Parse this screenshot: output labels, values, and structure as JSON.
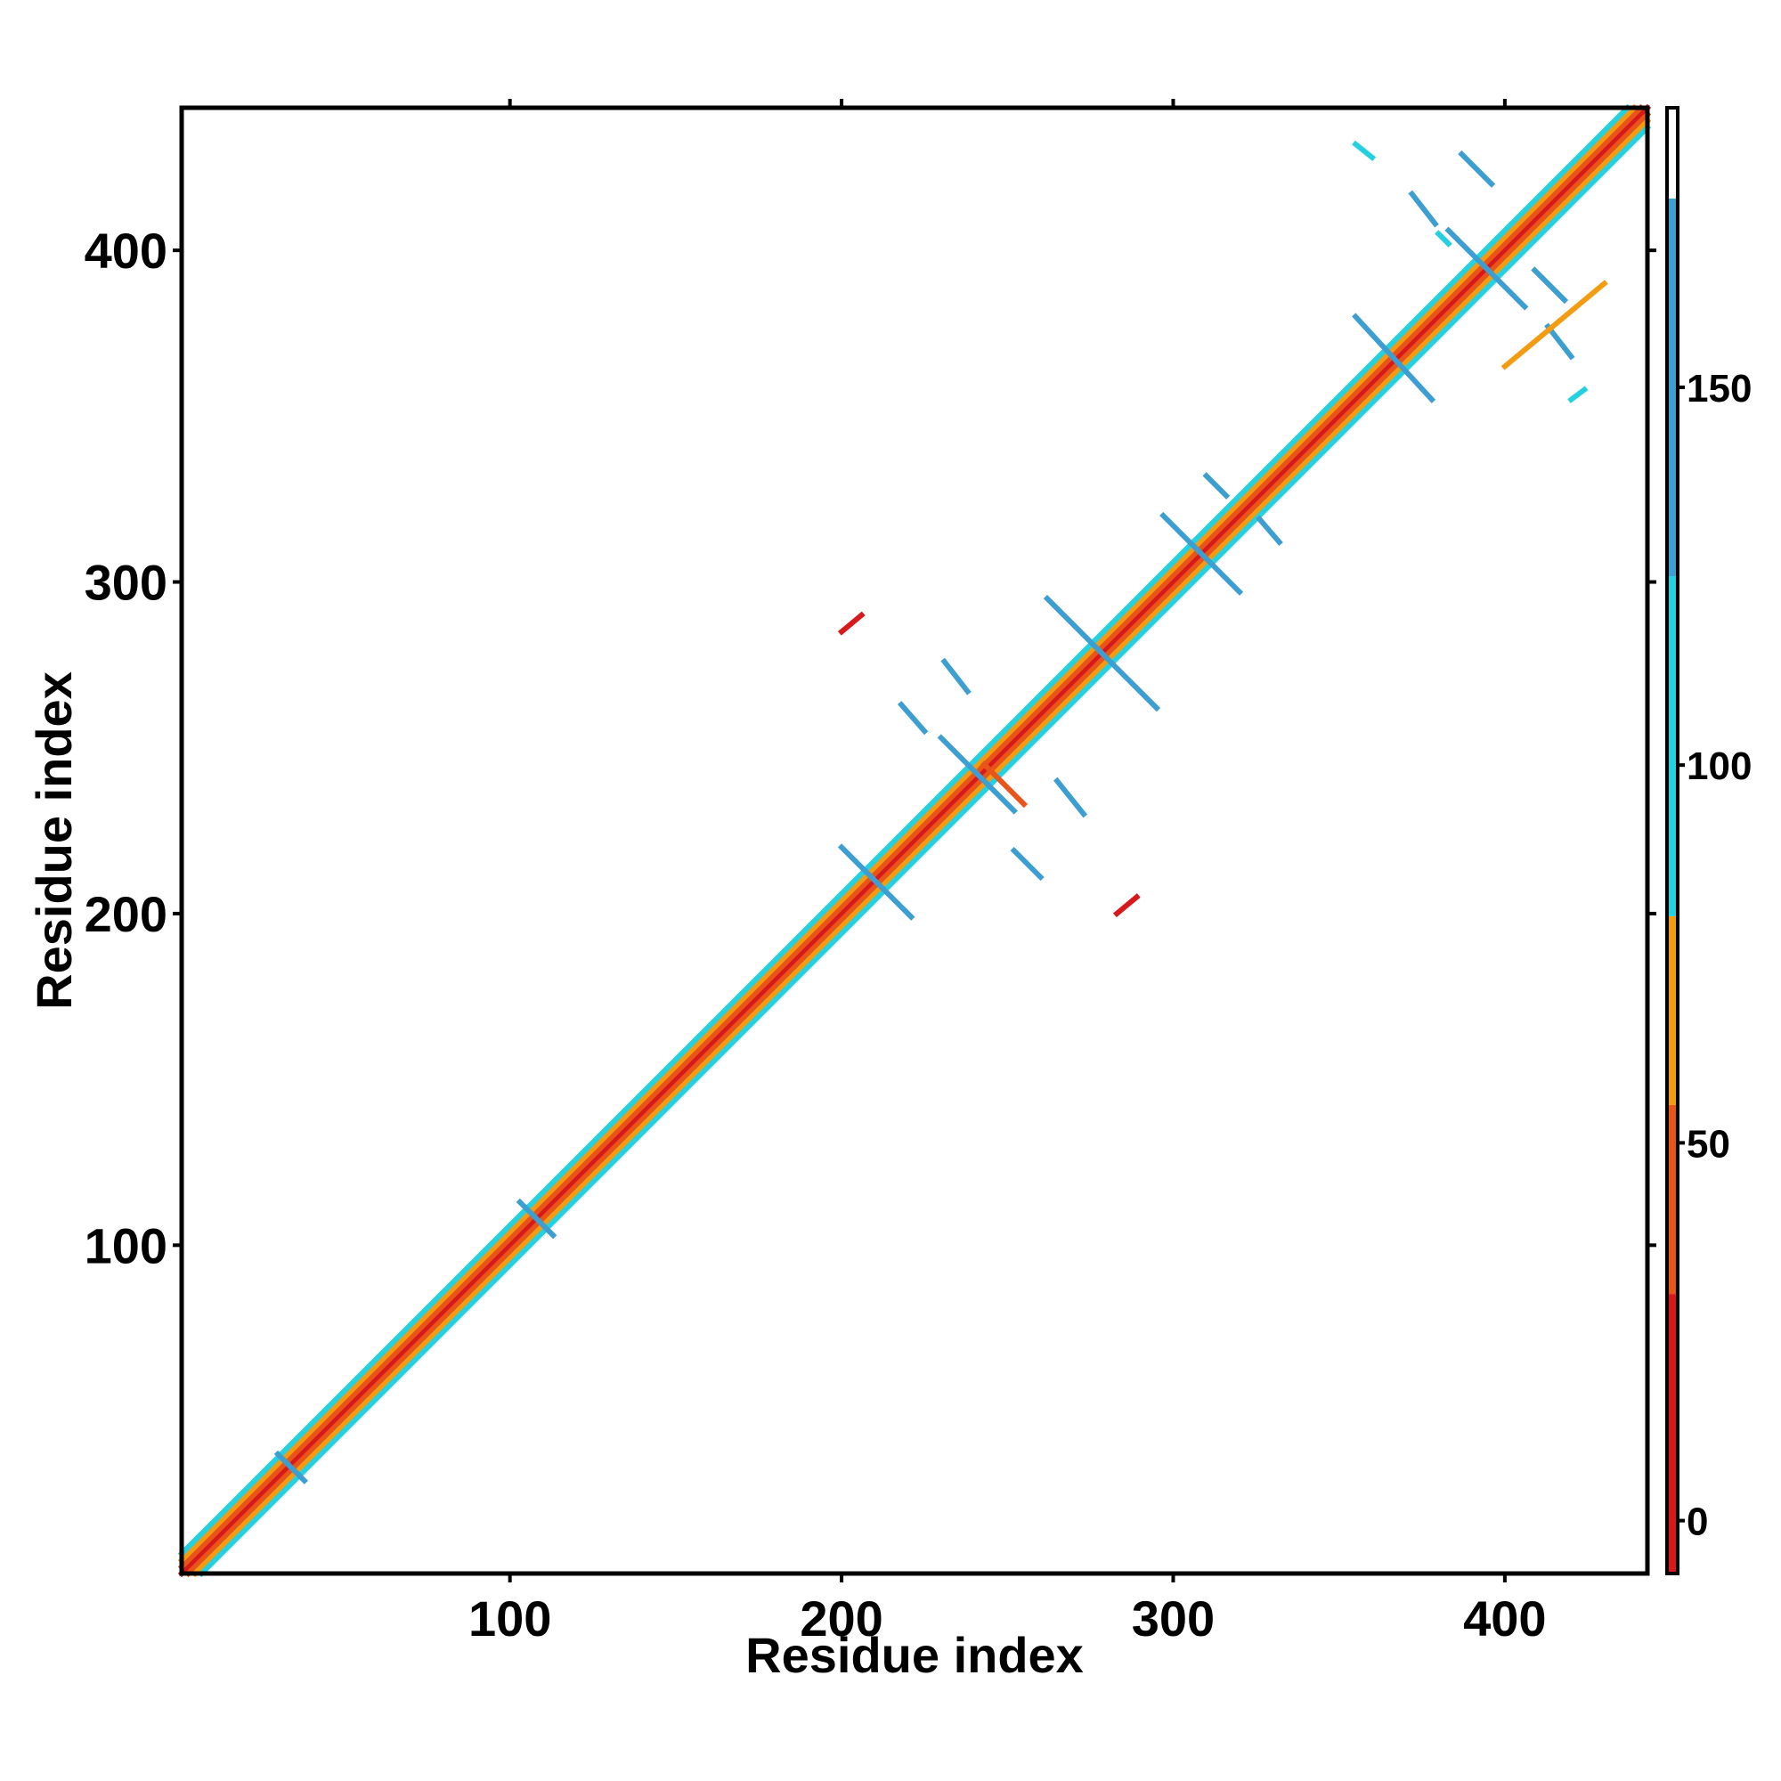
{
  "chart_data": {
    "type": "heatmap",
    "title": "",
    "xlabel": "Residue index",
    "ylabel": "Residue index",
    "xlim": [
      1,
      443
    ],
    "ylim": [
      1,
      443
    ],
    "x_ticks": [
      100,
      200,
      300,
      400
    ],
    "y_ticks": [
      100,
      200,
      300,
      400
    ],
    "grid": false,
    "colorbar": {
      "position": "right",
      "range": [
        -7,
        187
      ],
      "ticks": [
        0,
        50,
        100,
        150
      ],
      "bands": [
        {
          "from": -7,
          "to": 30,
          "color": "#d7191c"
        },
        {
          "from": 30,
          "to": 55,
          "color": "#e8551a"
        },
        {
          "from": 55,
          "to": 80,
          "color": "#f39c12"
        },
        {
          "from": 80,
          "to": 125,
          "color": "#25d0e0"
        },
        {
          "from": 125,
          "to": 175,
          "color": "#3d9fd1"
        },
        {
          "from": 175,
          "to": 187,
          "color": "#ffffff"
        }
      ]
    },
    "contact_segments": [
      {
        "start": [
          1,
          1
        ],
        "end": [
          443,
          443
        ],
        "value": 5
      },
      {
        "start": [
          3,
          1
        ],
        "end": [
          443,
          441
        ],
        "value": 40
      },
      {
        "start": [
          1,
          3
        ],
        "end": [
          441,
          443
        ],
        "value": 40
      },
      {
        "start": [
          5,
          1
        ],
        "end": [
          443,
          439
        ],
        "value": 70
      },
      {
        "start": [
          1,
          5
        ],
        "end": [
          439,
          443
        ],
        "value": 70
      },
      {
        "start": [
          7,
          1
        ],
        "end": [
          443,
          437
        ],
        "value": 90
      },
      {
        "start": [
          1,
          7
        ],
        "end": [
          437,
          443
        ],
        "value": 90
      },
      {
        "start": [
          30,
          37
        ],
        "end": [
          38,
          29
        ],
        "value": 140
      },
      {
        "start": [
          103,
          113
        ],
        "end": [
          113,
          103
        ],
        "value": 150
      },
      {
        "start": [
          200,
          220
        ],
        "end": [
          221,
          199
        ],
        "value": 140
      },
      {
        "start": [
          230,
          253
        ],
        "end": [
          252,
          231
        ],
        "value": 145
      },
      {
        "start": [
          262,
          295
        ],
        "end": [
          295,
          262
        ],
        "value": 150
      },
      {
        "start": [
          218,
          263
        ],
        "end": [
          225,
          255
        ],
        "value": 140
      },
      {
        "start": [
          231,
          276
        ],
        "end": [
          238,
          267
        ],
        "value": 145
      },
      {
        "start": [
          252,
          219
        ],
        "end": [
          260,
          211
        ],
        "value": 140
      },
      {
        "start": [
          265,
          240
        ],
        "end": [
          273,
          230
        ],
        "value": 145
      },
      {
        "start": [
          200,
          285
        ],
        "end": [
          206,
          290
        ],
        "value": 15
      },
      {
        "start": [
          283,
          200
        ],
        "end": [
          289,
          205
        ],
        "value": 15
      },
      {
        "start": [
          243,
          245
        ],
        "end": [
          255,
          233
        ],
        "value": 50
      },
      {
        "start": [
          297,
          320
        ],
        "end": [
          320,
          297
        ],
        "value": 135
      },
      {
        "start": [
          310,
          332
        ],
        "end": [
          316,
          326
        ],
        "value": 150
      },
      {
        "start": [
          326,
          319
        ],
        "end": [
          332,
          312
        ],
        "value": 150
      },
      {
        "start": [
          355,
          380
        ],
        "end": [
          378,
          355
        ],
        "value": 145
      },
      {
        "start": [
          383,
          406
        ],
        "end": [
          406,
          383
        ],
        "value": 150
      },
      {
        "start": [
          372,
          417
        ],
        "end": [
          379,
          408
        ],
        "value": 145
      },
      {
        "start": [
          387,
          429
        ],
        "end": [
          396,
          420
        ],
        "value": 150
      },
      {
        "start": [
          409,
          394
        ],
        "end": [
          418,
          385
        ],
        "value": 150
      },
      {
        "start": [
          413,
          377
        ],
        "end": [
          420,
          368
        ],
        "value": 145
      },
      {
        "start": [
          380,
          405
        ],
        "end": [
          383,
          402
        ],
        "value": 100
      },
      {
        "start": [
          400,
          365
        ],
        "end": [
          430,
          390
        ],
        "value": 60
      },
      {
        "start": [
          355,
          432
        ],
        "end": [
          360,
          428
        ],
        "value": 100
      },
      {
        "start": [
          420,
          355
        ],
        "end": [
          424,
          358
        ],
        "value": 120
      }
    ]
  }
}
